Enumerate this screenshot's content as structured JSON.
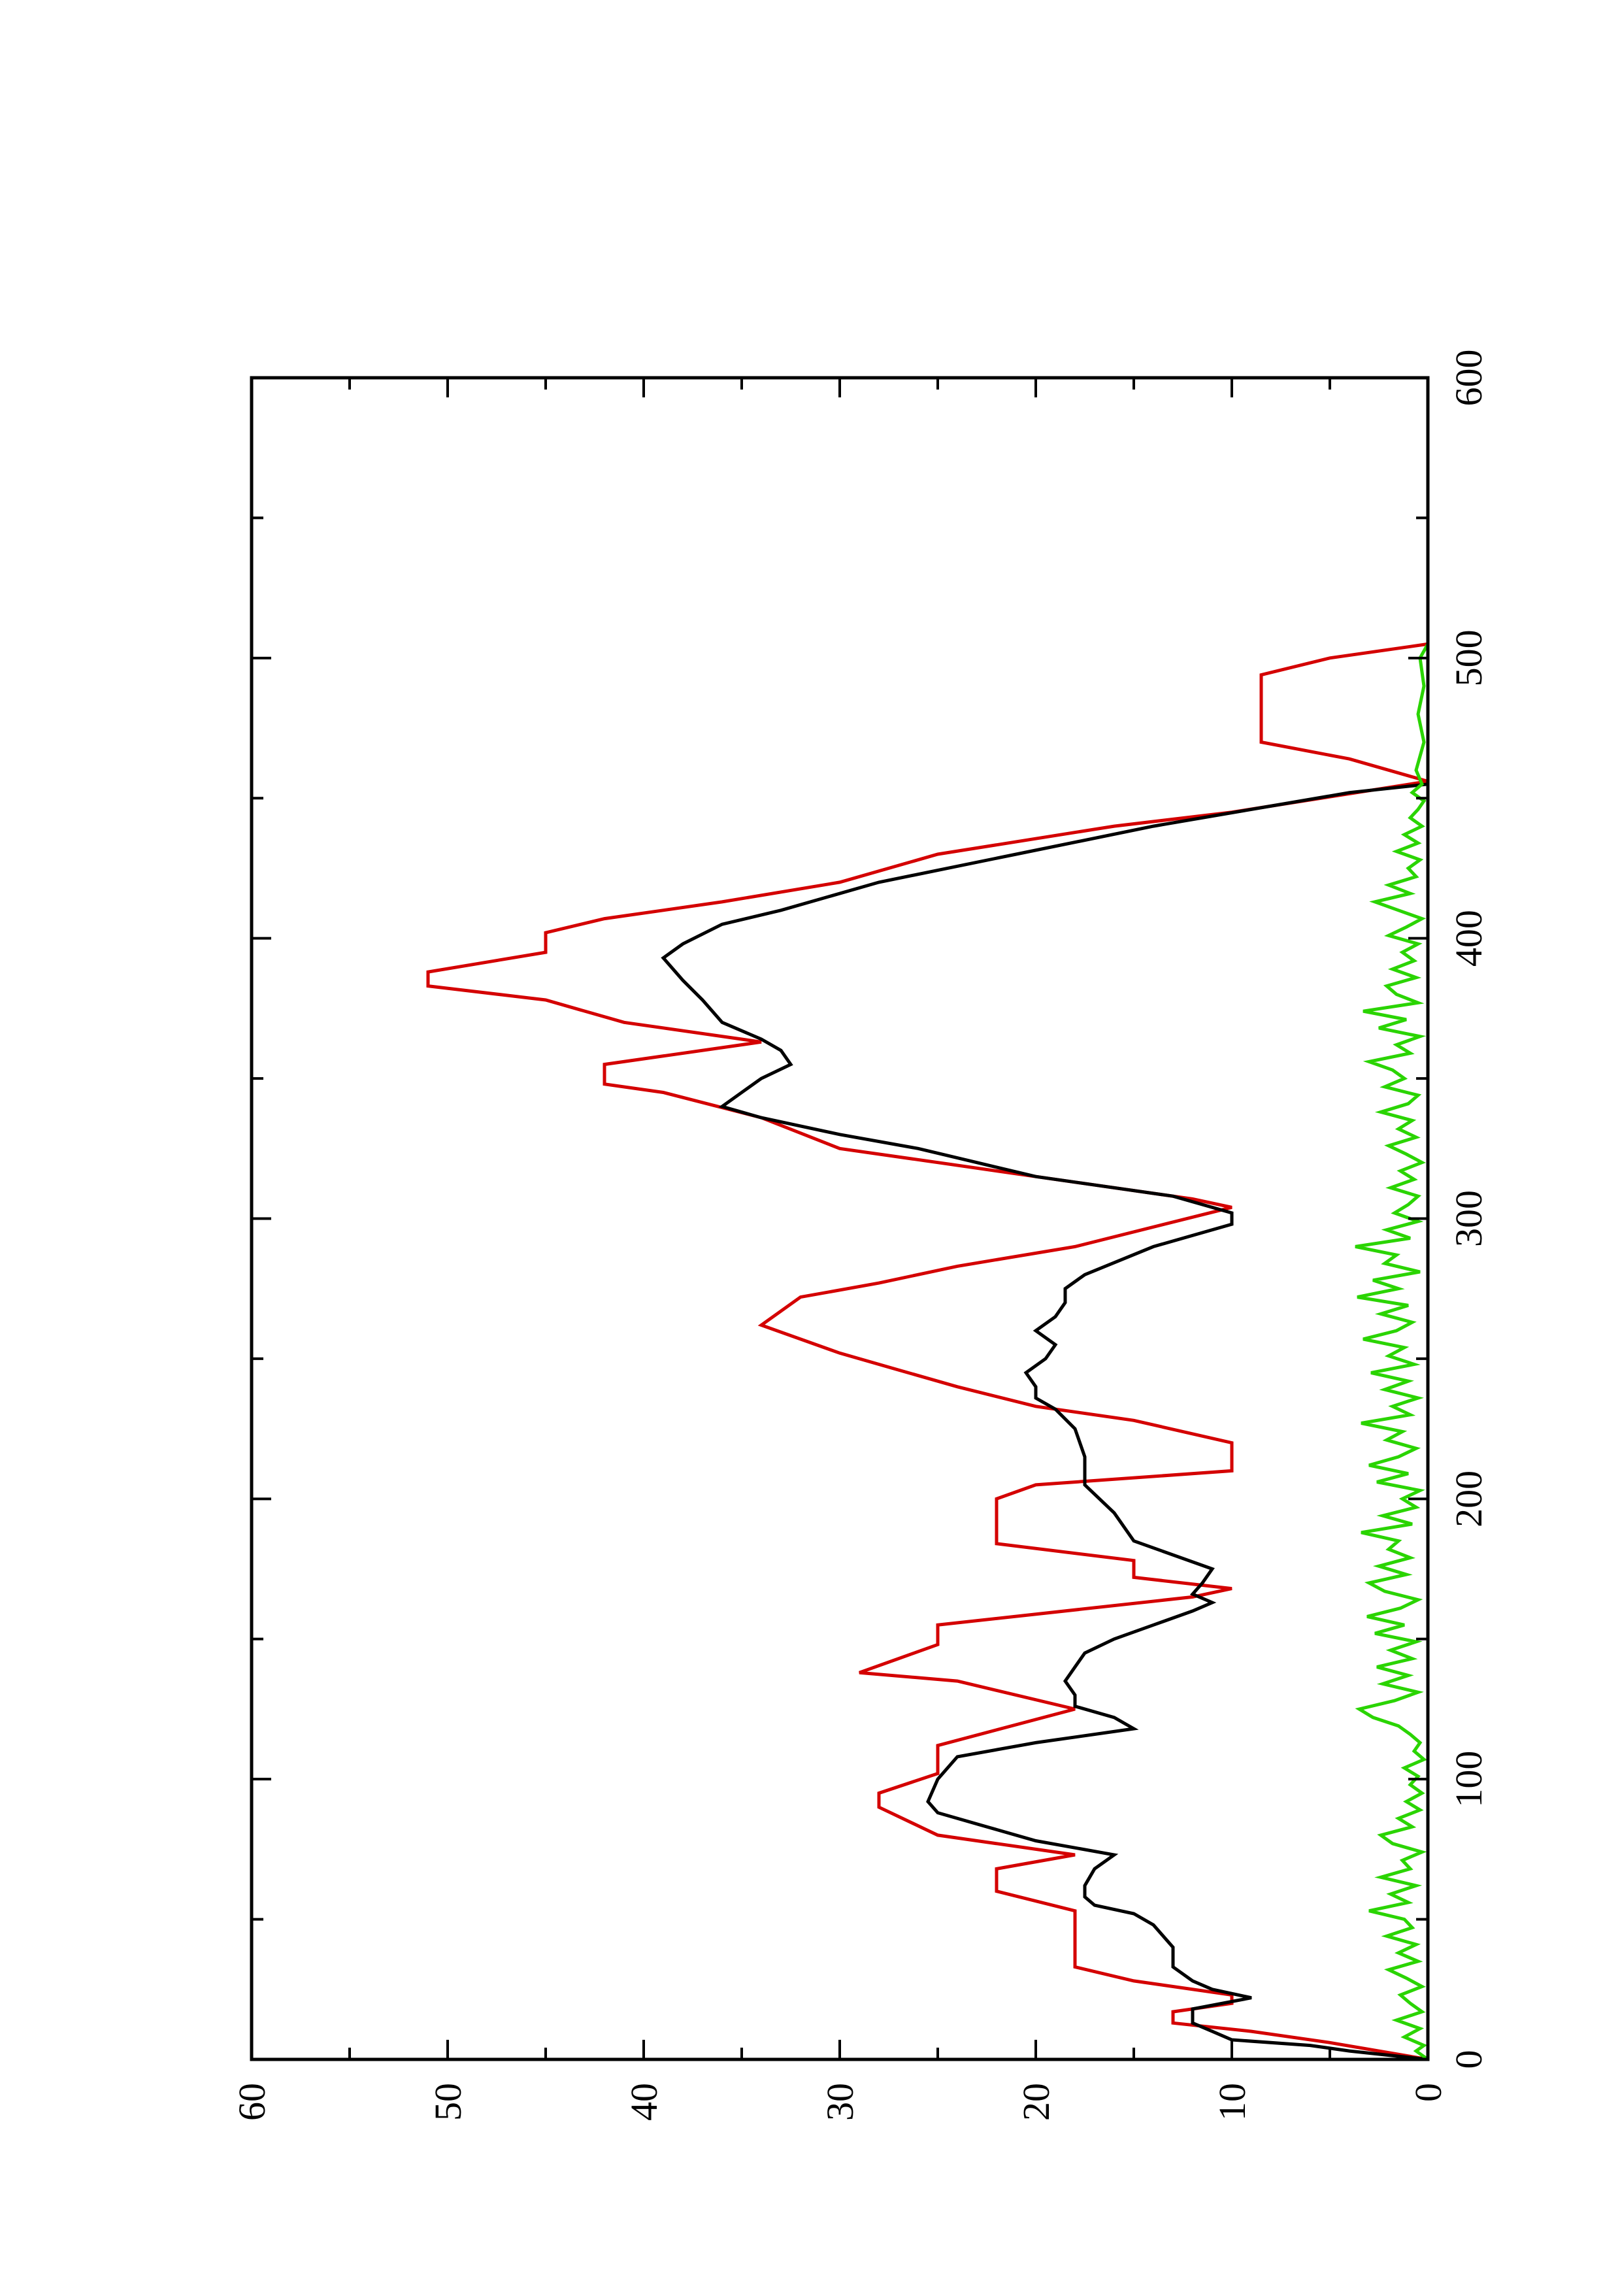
{
  "chart_data": {
    "type": "line",
    "orientation": "rotated-90-ccw",
    "title": "",
    "xlabel": "",
    "ylabel": "",
    "xlim": [
      0,
      600
    ],
    "ylim": [
      0,
      60
    ],
    "x_major_ticks": [
      0,
      100,
      200,
      300,
      400,
      500,
      600
    ],
    "x_minor_ticks": [
      50,
      150,
      250,
      350,
      450,
      550
    ],
    "y_major_ticks": [
      0,
      10,
      20,
      30,
      40,
      50,
      60
    ],
    "y_minor_ticks": [
      5,
      15,
      25,
      35,
      45,
      55
    ],
    "x_tick_labels": [
      "0",
      "100",
      "200",
      "300",
      "400",
      "500",
      "600"
    ],
    "y_tick_labels": [
      "0",
      "10",
      "20",
      "30",
      "40",
      "50",
      "60"
    ],
    "grid": false,
    "legend": "none",
    "series": [
      {
        "color": "#d40000",
        "x": [
          0,
          6,
          10,
          13,
          17,
          20,
          23,
          28,
          33,
          53,
          60,
          68,
          73,
          80,
          90,
          95,
          102,
          112,
          125,
          135,
          138,
          148,
          155,
          165,
          168,
          172,
          178,
          184,
          190,
          200,
          205,
          210,
          220,
          228,
          233,
          240,
          246,
          252,
          262,
          272,
          277,
          283,
          290,
          304,
          307,
          313,
          320,
          325,
          336,
          345,
          348,
          355,
          363,
          370,
          378,
          383,
          388,
          395,
          402,
          407,
          413,
          420,
          430,
          440,
          445,
          456,
          464,
          470,
          494,
          500,
          505
        ],
        "y": [
          0,
          5,
          9,
          13,
          13,
          10,
          10,
          15,
          18,
          18,
          22,
          22,
          18,
          25,
          28,
          28,
          25,
          25,
          18,
          24,
          29,
          25,
          25,
          12,
          10,
          15,
          15,
          22,
          22,
          22,
          20,
          10,
          10,
          15,
          20,
          24,
          27,
          30,
          34,
          32,
          28,
          24,
          18,
          10,
          12,
          18,
          25,
          30,
          34,
          39,
          42,
          42,
          34,
          41,
          45,
          51,
          51,
          45,
          45,
          42,
          36,
          30,
          25,
          16,
          10,
          0,
          4,
          8.5,
          8.5,
          5,
          0
        ]
      },
      {
        "color": "#000000",
        "x": [
          0,
          3,
          5,
          7,
          10,
          13,
          18,
          22,
          25,
          28,
          33,
          40,
          48,
          52,
          55,
          58,
          62,
          68,
          73,
          78,
          82,
          88,
          92,
          100,
          108,
          113,
          118,
          122,
          126,
          130,
          135,
          140,
          145,
          150,
          155,
          160,
          163,
          166,
          170,
          175,
          180,
          185,
          195,
          205,
          215,
          225,
          232,
          236,
          240,
          245,
          250,
          255,
          260,
          265,
          270,
          275,
          280,
          290,
          298,
          302,
          308,
          315,
          325,
          330,
          336,
          340,
          345,
          350,
          355,
          360,
          364,
          370,
          378,
          385,
          393,
          398,
          405,
          410,
          420,
          430,
          440,
          446,
          452,
          455
        ],
        "y": [
          0,
          4,
          6,
          10,
          11,
          12,
          12,
          9,
          11,
          12,
          13,
          13,
          14,
          15,
          17,
          17.5,
          17.5,
          17,
          16,
          20,
          22,
          25,
          25.5,
          25,
          24,
          20,
          15,
          16,
          18,
          18,
          18.5,
          18,
          17.5,
          16,
          14,
          12,
          11,
          12,
          11.5,
          11,
          13,
          15,
          16,
          17.5,
          17.5,
          18,
          19,
          20,
          20,
          20.5,
          19.5,
          19,
          20,
          19,
          18.5,
          18.5,
          17.5,
          14,
          10,
          10,
          13,
          20,
          26,
          30,
          34,
          36,
          35,
          34,
          32.5,
          33,
          34,
          36,
          37,
          38,
          39,
          38,
          36,
          33,
          28,
          21,
          14,
          9,
          4,
          0
        ]
      },
      {
        "color": "#2ad400",
        "x": [
          0,
          3,
          5,
          8,
          11,
          14,
          17,
          20,
          23,
          26,
          29,
          32,
          35,
          38,
          41,
          44,
          47,
          50,
          53,
          56,
          59,
          62,
          65,
          68,
          71,
          74,
          77,
          80,
          83,
          86,
          89,
          92,
          95,
          98,
          101,
          104,
          107,
          110,
          113,
          116,
          119,
          122,
          125,
          128,
          131,
          134,
          137,
          140,
          143,
          146,
          149,
          152,
          155,
          158,
          161,
          164,
          167,
          170,
          173,
          176,
          179,
          182,
          185,
          188,
          191,
          194,
          197,
          200,
          203,
          206,
          209,
          212,
          215,
          218,
          221,
          224,
          227,
          230,
          233,
          236,
          239,
          242,
          245,
          248,
          251,
          254,
          257,
          260,
          263,
          266,
          269,
          272,
          275,
          278,
          281,
          284,
          287,
          290,
          293,
          296,
          299,
          302,
          305,
          308,
          311,
          314,
          317,
          320,
          323,
          326,
          329,
          332,
          335,
          338,
          341,
          344,
          347,
          350,
          353,
          356,
          359,
          362,
          365,
          368,
          371,
          374,
          377,
          380,
          383,
          386,
          389,
          392,
          395,
          398,
          401,
          404,
          407,
          410,
          413,
          416,
          419,
          422,
          425,
          428,
          431,
          434,
          437,
          440,
          443,
          446,
          449,
          452,
          455,
          460,
          470,
          480,
          490,
          500,
          505
        ],
        "y": [
          0,
          0.6,
          0.2,
          1.2,
          0.4,
          1.6,
          0.3,
          0.9,
          1.4,
          0.3,
          1.1,
          2.0,
          0.5,
          1.5,
          0.6,
          2.1,
          0.8,
          1.2,
          3.0,
          1.0,
          1.9,
          0.6,
          2.4,
          0.9,
          1.3,
          0.3,
          1.8,
          2.4,
          0.8,
          1.5,
          0.4,
          1.1,
          0.3,
          0.9,
          0.5,
          1.2,
          0.2,
          0.7,
          0.4,
          0.9,
          1.5,
          2.8,
          3.5,
          1.7,
          0.5,
          2.3,
          1.0,
          2.6,
          0.8,
          1.9,
          0.6,
          2.7,
          1.2,
          3.1,
          1.4,
          0.5,
          2.2,
          3.0,
          1.1,
          2.5,
          0.9,
          2.0,
          1.5,
          3.4,
          0.8,
          2.3,
          0.6,
          1.3,
          0.4,
          2.6,
          1.0,
          3.0,
          1.5,
          0.6,
          2.1,
          1.3,
          3.4,
          0.9,
          1.8,
          0.5,
          2.2,
          1.0,
          2.9,
          0.7,
          2.0,
          1.2,
          3.3,
          1.6,
          0.8,
          2.4,
          1.0,
          3.6,
          1.5,
          2.8,
          0.4,
          2.2,
          1.6,
          3.7,
          0.9,
          2.1,
          0.5,
          1.7,
          1.0,
          0.5,
          1.9,
          0.7,
          1.4,
          0.3,
          1.1,
          2.0,
          0.6,
          1.5,
          0.8,
          2.4,
          1.0,
          0.5,
          2.2,
          1.2,
          1.8,
          3.0,
          0.9,
          1.6,
          0.4,
          2.5,
          1.1,
          3.3,
          0.5,
          1.6,
          2.1,
          0.6,
          1.8,
          0.7,
          1.3,
          0.5,
          2.0,
          1.1,
          0.3,
          1.5,
          2.7,
          0.9,
          2.0,
          0.6,
          1.0,
          0.4,
          1.6,
          0.5,
          1.2,
          0.3,
          0.9,
          0.5,
          0.2,
          0.8,
          0.3,
          0.6,
          0.2,
          0.5,
          0.2,
          0.4,
          0
        ]
      }
    ]
  }
}
